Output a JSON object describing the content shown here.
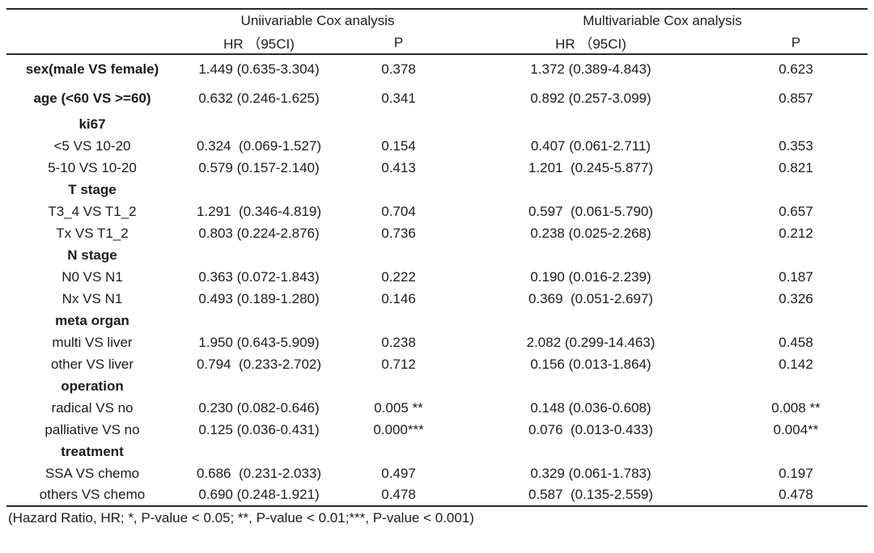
{
  "table": {
    "group_headers": {
      "univariable": "Uniivariable Cox analysis",
      "multivariable": "Multivariable Cox analysis"
    },
    "col_headers": {
      "uni_hr": "HR （95CI)",
      "uni_p": "P",
      "multi_hr": "HR （95CI)",
      "multi_p": "P"
    },
    "rows": [
      {
        "label": "sex(male VS female)",
        "uni_hr": "1.449 (0.635-3.304)",
        "uni_p": "0.378",
        "multi_hr": "1.372 (0.389-4.843)",
        "multi_p": "0.623"
      },
      {
        "label": "age (<60 VS >=60)",
        "uni_hr": "0.632 (0.246-1.625)",
        "uni_p": "0.341",
        "multi_hr": "0.892 (0.257-3.099)",
        "multi_p": "0.857"
      },
      {
        "label": "ki67"
      },
      {
        "label": "<5 VS 10-20",
        "uni_hr": "0.324  (0.069-1.527)",
        "uni_p": "0.154",
        "multi_hr": "0.407 (0.061-2.711)",
        "multi_p": "0.353"
      },
      {
        "label": "5-10 VS 10-20",
        "uni_hr": "0.579 (0.157-2.140)",
        "uni_p": "0.413",
        "multi_hr": "1.201  (0.245-5.877)",
        "multi_p": "0.821"
      },
      {
        "label": "T stage"
      },
      {
        "label": "T3_4 VS T1_2",
        "uni_hr": "1.291  (0.346-4.819)",
        "uni_p": "0.704",
        "multi_hr": "0.597  (0.061-5.790)",
        "multi_p": "0.657"
      },
      {
        "label": "Tx VS T1_2",
        "uni_hr": "0.803 (0.224-2.876)",
        "uni_p": "0.736",
        "multi_hr": "0.238 (0.025-2.268)",
        "multi_p": "0.212"
      },
      {
        "label": "N stage"
      },
      {
        "label": "N0 VS N1",
        "uni_hr": "0.363 (0.072-1.843)",
        "uni_p": "0.222",
        "multi_hr": "0.190 (0.016-2.239)",
        "multi_p": "0.187"
      },
      {
        "label": "Nx VS N1",
        "uni_hr": "0.493 (0.189-1.280)",
        "uni_p": "0.146",
        "multi_hr": "0.369  (0.051-2.697)",
        "multi_p": "0.326"
      },
      {
        "label": "meta organ"
      },
      {
        "label": "multi VS liver",
        "uni_hr": "1.950 (0.643-5.909)",
        "uni_p": "0.238",
        "multi_hr": "2.082 (0.299-14.463)",
        "multi_p": "0.458"
      },
      {
        "label": "other VS liver",
        "uni_hr": "0.794  (0.233-2.702)",
        "uni_p": "0.712",
        "multi_hr": "0.156 (0.013-1.864)",
        "multi_p": "0.142"
      },
      {
        "label": "operation"
      },
      {
        "label": "radical VS no",
        "uni_hr": "0.230 (0.082-0.646)",
        "uni_p": "0.005 **",
        "multi_hr": "0.148 (0.036-0.608)",
        "multi_p": "0.008 **"
      },
      {
        "label": "palliative VS no",
        "uni_hr": "0.125 (0.036-0.431)",
        "uni_p": "0.000***",
        "multi_hr": "0.076  (0.013-0.433)",
        "multi_p": "0.004**"
      },
      {
        "label": "treatment"
      },
      {
        "label": "SSA VS chemo",
        "uni_hr": "0.686  (0.231-2.033)",
        "uni_p": "0.497",
        "multi_hr": "0.329 (0.061-1.783)",
        "multi_p": "0.197"
      },
      {
        "label": "others VS chemo",
        "uni_hr": "0.690 (0.248-1.921)",
        "uni_p": "0.478",
        "multi_hr": "0.587  (0.135-2.559)",
        "multi_p": "0.478"
      }
    ],
    "bold_rows": [
      0,
      1,
      2,
      5,
      8,
      11,
      14,
      17
    ],
    "tall_rows": [
      0,
      1
    ],
    "footnote": "(Hazard Ratio, HR; *, P-value < 0.05; **, P-value < 0.01;***, P-value < 0.001)"
  }
}
